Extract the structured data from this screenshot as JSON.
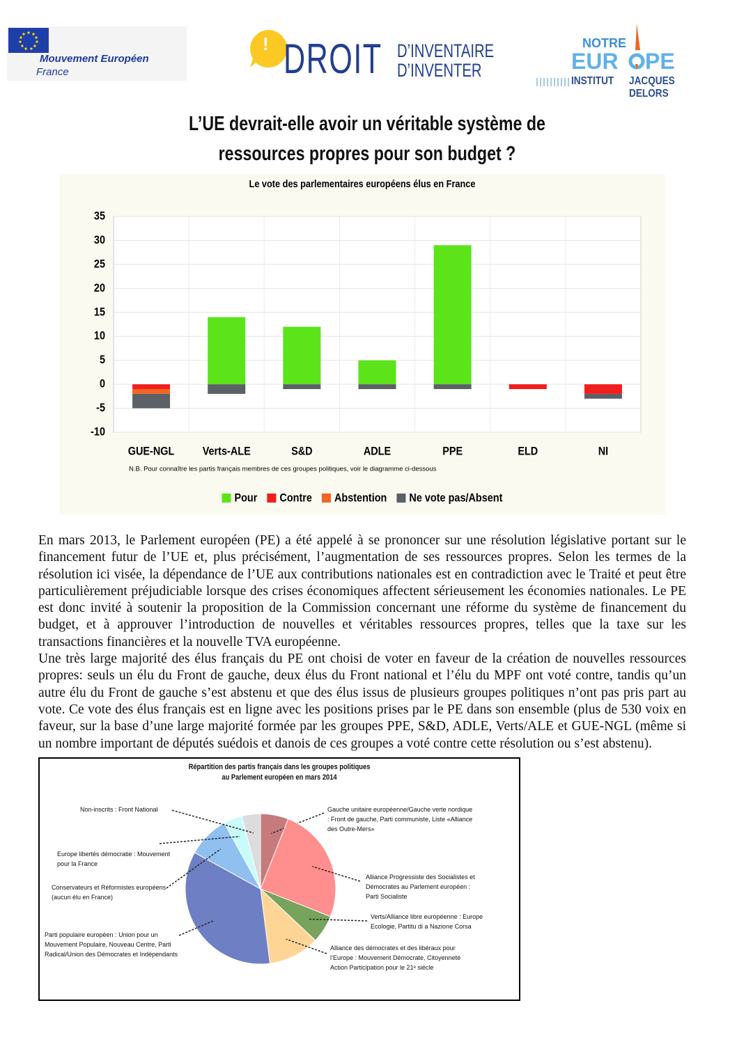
{
  "header": {
    "left_logo": {
      "name": "Mouvement Européen",
      "country": "France"
    },
    "center_logo": {
      "icon": "!",
      "word": "DROIT",
      "line1": "D’INVENTAIRE",
      "line2": "D’INVENTER"
    },
    "right_logo": {
      "top": "NOTRE",
      "left": "EUR",
      "right": "PE",
      "institut": "INSTITUT",
      "name": "JACQUES DELORS"
    }
  },
  "title": [
    "L’UE devrait-elle avoir un véritable système de",
    "ressources propres pour son budget ?"
  ],
  "chart_data": [
    {
      "type": "bar",
      "stacked": true,
      "title": "Le vote des parlementaires européens élus en France",
      "note": "N.B. Pour connaître les partis français membres de ces groupes politiques, voir le diagramme ci-dessous",
      "categories": [
        "GUE-NGL",
        "Verts-ALE",
        "S&D",
        "ADLE",
        "PPE",
        "ELD",
        "NI"
      ],
      "series": [
        {
          "name": "Pour",
          "color": "#5ce31a",
          "values": [
            0,
            14,
            12,
            5,
            29,
            0,
            0
          ]
        },
        {
          "name": "Contre",
          "color": "#f21d1d",
          "values": [
            -1,
            0,
            0,
            0,
            0,
            -1,
            -2
          ]
        },
        {
          "name": "Abstention",
          "color": "#f26522",
          "values": [
            -1,
            0,
            0,
            0,
            0,
            0,
            0
          ]
        },
        {
          "name": "Ne vote pas/Absent",
          "color": "#5b6166",
          "values": [
            -3,
            -2,
            -1,
            -1,
            -1,
            0,
            -1
          ]
        }
      ],
      "ylim": [
        -10,
        35
      ],
      "yticks": [
        -10,
        -5,
        0,
        5,
        10,
        15,
        20,
        25,
        30,
        35
      ],
      "grid": true,
      "legend": "bottom"
    },
    {
      "type": "pie",
      "title": [
        "Répartition des partis français dans les groupes politiques",
        "au Parlement européen en mars 2014"
      ],
      "categories": [
        "Gauche unitaire européenne/Gauche verte nordique : Front de gauche, Parti communiste, Liste «Alliance des Outre-Mers»",
        "Alliance Progressiste des Socialistes et Démocrates au Parlement européen : Parti Socialiste",
        "Verts/Alliance libre européenne : Europe Ecologie, Partitu di a Nazione Corsa",
        "Alliance des démocrates et des libéraux pour l’Europe : Mouvement Démocrate, Citoyenneté Action Participation pour le 21ᵉ siècle",
        "Parti populaire européen : Union pour un Mouvement Populaire, Nouveau Centre, Parti Radical/Union des Démocrates et Indépendants",
        "Conservateurs et Réformistes européens (aucun élu en France)",
        "Europe libertés démocratie : Mouvement pour la France",
        "Non-inscrits : Front National"
      ],
      "values": [
        6,
        25,
        6,
        11,
        35,
        9,
        4,
        4
      ],
      "colors": [
        "#c57b7b",
        "#ff8e8e",
        "#77a35c",
        "#ffd596",
        "#6f7fc4",
        "#8fc0f0",
        "#c9fbfa",
        "#dcdcdc"
      ]
    }
  ],
  "body": {
    "paragraphs": [
      "En mars 2013, le Parlement européen (PE) a été appelé à se prononcer sur une résolution législative portant sur le financement futur de l’UE et, plus précisément, l’augmentation de ses ressources propres. Selon les termes de la résolution ici visée, la dépendance de l’UE aux contributions nationales est en contradiction avec le Traité et peut être particulièrement préjudiciable lorsque des crises économiques affectent sérieusement les économies nationales. Le PE est donc invité à soutenir la proposition de la Commission concernant une réforme du système de financement du budget, et à approuver l’introduction de nouvelles et véritables ressources propres, telles que la taxe sur les transactions financières et la nouvelle TVA européenne.",
      "Une très large majorité des élus français du PE ont choisi de voter en faveur de la création de nouvelles ressources propres: seuls un élu du Front de gauche, deux élus du Front national et l’élu du MPF ont voté contre, tandis qu’un autre élu du Front de gauche s’est abstenu et que des élus issus de plusieurs groupes politiques n’ont pas pris part au vote. Ce vote des élus français est en ligne avec les positions prises par le PE dans son ensemble (plus de 530 voix en faveur, sur la base d’une large majorité formée par les groupes PPE, S&D, ADLE, Verts/ALE et GUE-NGL (même si un nombre important de députés suédois et danois de ces groupes a voté contre cette résolution ou s’est abstenu)."
    ]
  }
}
